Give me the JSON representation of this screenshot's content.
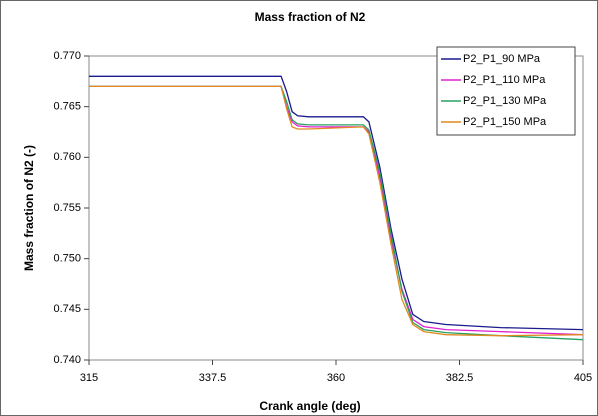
{
  "chart_data": {
    "type": "line",
    "title": "Mass fraction of N2",
    "xlabel": "Crank angle (deg)",
    "ylabel": "Mass fraction of N2 (-)",
    "x": [
      315,
      350,
      351,
      352,
      353,
      355,
      365,
      366,
      368,
      370,
      372,
      374,
      376,
      380,
      390,
      405
    ],
    "series": [
      {
        "name": "P2_P1_90 MPa",
        "color": "#1a1a8c",
        "values": [
          0.768,
          0.768,
          0.7665,
          0.7645,
          0.7641,
          0.764,
          0.764,
          0.7635,
          0.759,
          0.753,
          0.748,
          0.7445,
          0.7438,
          0.7435,
          0.7432,
          0.743
        ]
      },
      {
        "name": "P2_P1_110 MPa",
        "color": "#e020d0",
        "values": [
          0.767,
          0.767,
          0.765,
          0.7635,
          0.7631,
          0.763,
          0.763,
          0.7625,
          0.758,
          0.752,
          0.747,
          0.744,
          0.7433,
          0.743,
          0.7428,
          0.7425
        ]
      },
      {
        "name": "P2_P1_130 MPa",
        "color": "#2aa060",
        "values": [
          0.767,
          0.767,
          0.7655,
          0.7637,
          0.7633,
          0.7632,
          0.7632,
          0.7627,
          0.7585,
          0.7525,
          0.7468,
          0.7437,
          0.743,
          0.7427,
          0.7424,
          0.742
        ]
      },
      {
        "name": "P2_P1_150 MPa",
        "color": "#e08a20",
        "values": [
          0.767,
          0.767,
          0.7648,
          0.763,
          0.7628,
          0.7628,
          0.763,
          0.7623,
          0.7575,
          0.7515,
          0.746,
          0.7435,
          0.7428,
          0.7425,
          0.7424,
          0.7425
        ]
      }
    ],
    "xlim": [
      315,
      405
    ],
    "xticks": [
      315,
      337.5,
      360,
      382.5,
      405
    ],
    "ylim": [
      0.74,
      0.77
    ],
    "yticks": [
      {
        "value": 0.74,
        "label": "0.740"
      },
      0.745,
      {
        "value": 0.75,
        "label": "0.750"
      },
      0.755,
      {
        "value": 0.76,
        "label": "0.760"
      },
      0.765,
      {
        "value": 0.77,
        "label": "0.770"
      }
    ],
    "legend": "upper right"
  }
}
